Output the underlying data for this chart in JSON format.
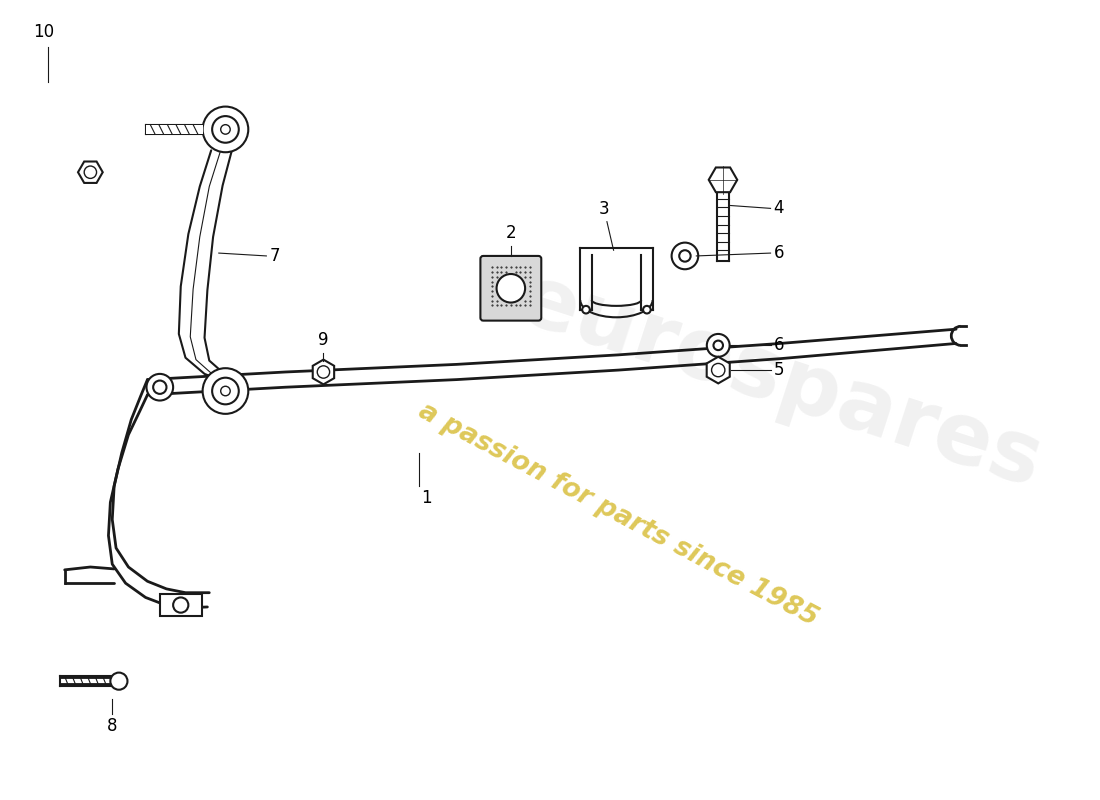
{
  "background_color": "#ffffff",
  "line_color": "#1a1a1a",
  "label_color": "#000000",
  "watermark_text": "a passion for parts since 1985",
  "watermark_color": "#ccaa00",
  "label_fontsize": 12,
  "fig_width": 11.0,
  "fig_height": 8.0,
  "dpi": 100
}
